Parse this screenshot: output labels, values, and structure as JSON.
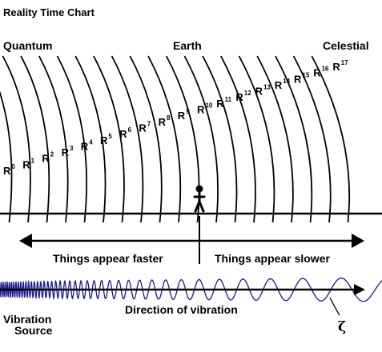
{
  "title": "Reality Time Chart",
  "regions": {
    "left": "Quantum",
    "center": "Earth",
    "right": "Celestial"
  },
  "reality_labels": [
    {
      "base": "R",
      "sup": "0"
    },
    {
      "base": "R",
      "sup": "1"
    },
    {
      "base": "R",
      "sup": "2"
    },
    {
      "base": "R",
      "sup": "3"
    },
    {
      "base": "R",
      "sup": "4"
    },
    {
      "base": "R",
      "sup": "5"
    },
    {
      "base": "R",
      "sup": "6"
    },
    {
      "base": "R",
      "sup": "7"
    },
    {
      "base": "R",
      "sup": "8"
    },
    {
      "base": "R",
      "sup": "9"
    },
    {
      "base": "R",
      "sup": "10"
    },
    {
      "base": "R",
      "sup": "11"
    },
    {
      "base": "R",
      "sup": "12"
    },
    {
      "base": "R",
      "sup": "13"
    },
    {
      "base": "R",
      "sup": "14"
    },
    {
      "base": "R",
      "sup": "15"
    },
    {
      "base": "R",
      "sup": "16"
    },
    {
      "base": "R",
      "sup": "17"
    }
  ],
  "arrow_labels": {
    "left": "Things appear faster",
    "right": "Things appear slower"
  },
  "vibration": {
    "source_line1": "Vibration",
    "source_line2": "Source",
    "direction": "Direction of vibration",
    "symbol": "ζ",
    "wave_color": "#1a1a8c"
  }
}
